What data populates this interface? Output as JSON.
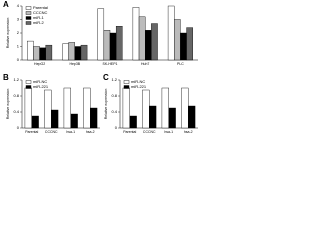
{
  "chart_data": [
    {
      "type": "bar",
      "title": "A",
      "y_label": "Relative expression",
      "categories": [
        "HepG2",
        "Hep3B",
        "SK-HEP1",
        "Huh7",
        "PLC"
      ],
      "series": [
        {
          "name": "Parental",
          "color": "#ffffff",
          "values": [
            1.4,
            1.2,
            3.8,
            3.9,
            4.0
          ]
        },
        {
          "name": "CCCNC",
          "color": "#bbbbbb",
          "values": [
            1.0,
            1.3,
            2.2,
            3.2,
            3.0
          ]
        },
        {
          "name": "miR-1",
          "color": "#000000",
          "values": [
            0.9,
            1.0,
            2.0,
            2.2,
            2.0
          ]
        },
        {
          "name": "miR-2",
          "color": "#666666",
          "values": [
            1.1,
            1.1,
            2.5,
            2.7,
            2.4
          ]
        }
      ],
      "ylim": [
        0,
        4
      ],
      "yticks": [
        0,
        1,
        2,
        3,
        4
      ]
    },
    {
      "type": "bar",
      "title": "B",
      "y_label": "Relative expression",
      "categories": [
        "Parental",
        "CCCNC",
        "hsa-1",
        "hsa-2"
      ],
      "series": [
        {
          "name": "miR-NC",
          "color": "#ffffff",
          "values": [
            1.0,
            0.95,
            1.0,
            1.0
          ]
        },
        {
          "name": "miR-221",
          "color": "#000000",
          "values": [
            0.3,
            0.45,
            0.35,
            0.5
          ]
        }
      ],
      "ylim": [
        0,
        1.2
      ],
      "yticks": [
        0,
        0.4,
        0.8,
        1.2
      ]
    },
    {
      "type": "bar",
      "title": "C",
      "y_label": "Relative expression",
      "categories": [
        "Parental",
        "CCCNC",
        "hsa-1",
        "hsa-2"
      ],
      "series": [
        {
          "name": "miR-NC",
          "color": "#ffffff",
          "values": [
            1.0,
            0.95,
            1.0,
            1.0
          ]
        },
        {
          "name": "miR-221",
          "color": "#000000",
          "values": [
            0.3,
            0.55,
            0.5,
            0.55
          ]
        }
      ],
      "ylim": [
        0,
        1.2
      ],
      "yticks": [
        0,
        0.4,
        0.8,
        1.2
      ]
    }
  ]
}
